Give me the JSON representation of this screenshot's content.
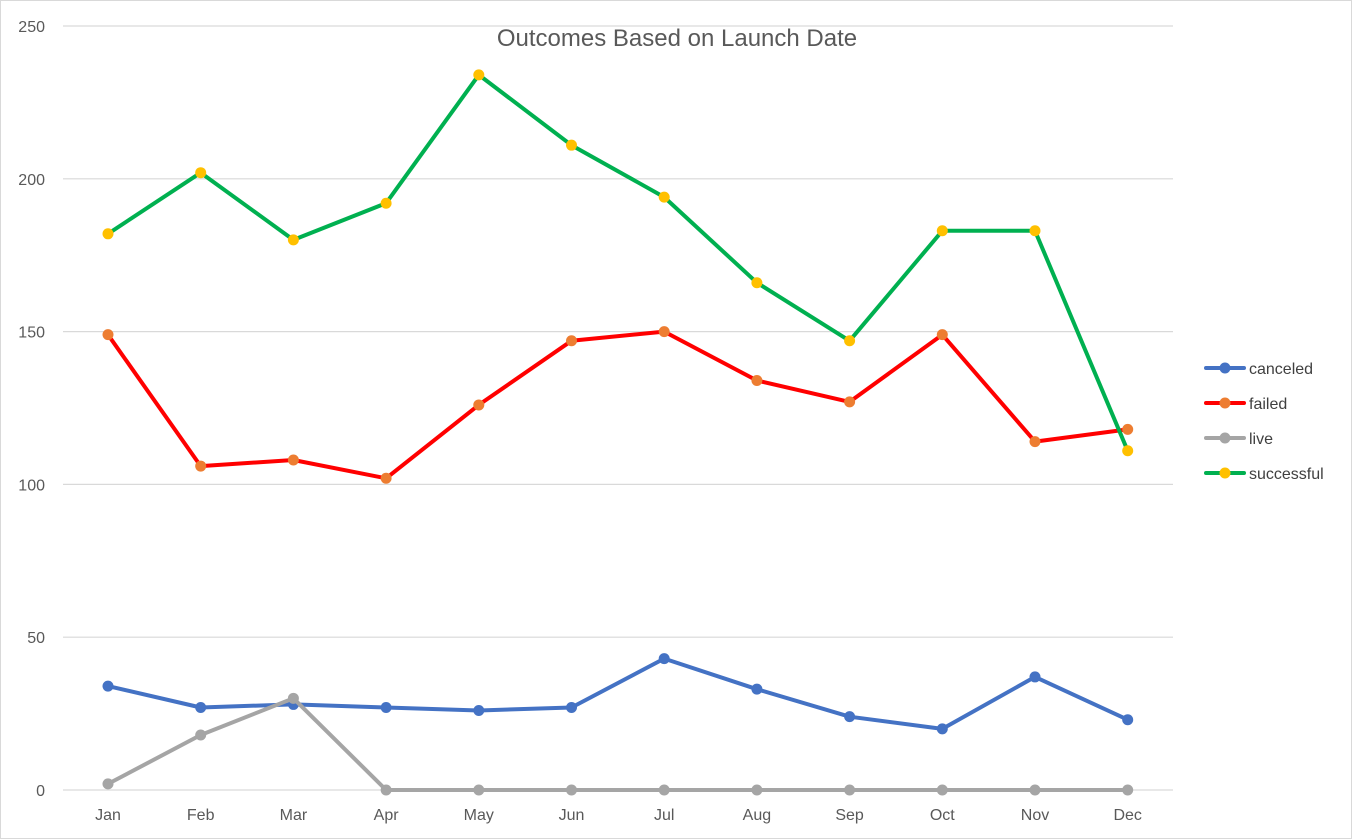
{
  "chart_data": {
    "type": "line",
    "title": "Outcomes Based on Launch Date",
    "xlabel": "",
    "ylabel": "",
    "categories": [
      "Jan",
      "Feb",
      "Mar",
      "Apr",
      "May",
      "Jun",
      "Jul",
      "Aug",
      "Sep",
      "Oct",
      "Nov",
      "Dec"
    ],
    "ylim": [
      0,
      250
    ],
    "yticks": [
      0,
      50,
      100,
      150,
      200,
      250
    ],
    "grid": true,
    "legend_position": "right",
    "series": [
      {
        "name": "canceled",
        "line_color": "#4472C4",
        "marker_color": "#4472C4",
        "values": [
          34,
          27,
          28,
          27,
          26,
          27,
          43,
          33,
          24,
          20,
          37,
          23
        ]
      },
      {
        "name": "failed",
        "line_color": "#FF0000",
        "marker_color": "#ED7D31",
        "values": [
          149,
          106,
          108,
          102,
          126,
          147,
          150,
          134,
          127,
          149,
          114,
          118
        ]
      },
      {
        "name": "live",
        "line_color": "#A5A5A5",
        "marker_color": "#A5A5A5",
        "values": [
          2,
          18,
          30,
          0,
          0,
          0,
          0,
          0,
          0,
          0,
          0,
          0
        ]
      },
      {
        "name": "successful",
        "line_color": "#00B050",
        "marker_color": "#FFC000",
        "values": [
          182,
          202,
          180,
          192,
          234,
          211,
          194,
          166,
          147,
          183,
          183,
          111
        ]
      }
    ]
  }
}
